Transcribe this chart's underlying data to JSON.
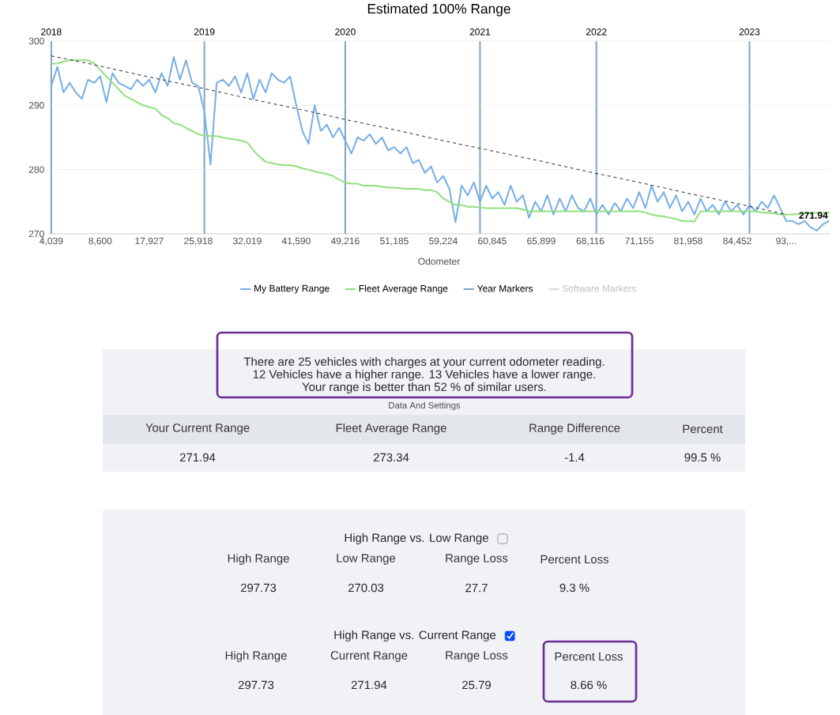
{
  "chart_data": [
    {
      "type": "line",
      "title": "Estimated 100% Range",
      "xlabel": "Odometer",
      "categories": [
        "4,039",
        null,
        null,
        null,
        null,
        null,
        null,
        null,
        "8,600",
        null,
        null,
        null,
        null,
        null,
        null,
        null,
        "17,927",
        null,
        null,
        null,
        null,
        null,
        null,
        null,
        "25,918",
        null,
        null,
        null,
        null,
        null,
        null,
        null,
        "32,019",
        null,
        null,
        null,
        null,
        null,
        null,
        null,
        "41,590",
        null,
        null,
        null,
        null,
        null,
        null,
        null,
        "49,216",
        null,
        null,
        null,
        null,
        null,
        null,
        null,
        "51,185",
        null,
        null,
        null,
        null,
        null,
        null,
        null,
        "59,224",
        null,
        null,
        null,
        null,
        null,
        null,
        null,
        "60,845",
        null,
        null,
        null,
        null,
        null,
        null,
        null,
        "65,899",
        null,
        null,
        null,
        null,
        null,
        null,
        null,
        "68,116",
        null,
        null,
        null,
        null,
        null,
        null,
        null,
        "71,155",
        null,
        null,
        null,
        null,
        null,
        null,
        null,
        "81,958",
        null,
        null,
        null,
        null,
        null,
        null,
        null,
        "84,452",
        null,
        null,
        null,
        null,
        null,
        null,
        null,
        "93,...",
        null,
        null,
        null,
        null,
        null,
        null,
        null
      ],
      "series": [
        {
          "name": "My Battery Range",
          "color": "#76aee6",
          "values": [
            293,
            296,
            292,
            293.5,
            292,
            291,
            294,
            293.5,
            294.5,
            290.5,
            295,
            293.5,
            293,
            292.5,
            294,
            293,
            294,
            292,
            295,
            293,
            297.5,
            294,
            297,
            293.5,
            293,
            289,
            280.8,
            293.5,
            294,
            293,
            294.5,
            292,
            295,
            291,
            294,
            292,
            295,
            294,
            293.5,
            294.5,
            290,
            286,
            284,
            290,
            286,
            287,
            285,
            286.5,
            284.5,
            282.5,
            285,
            284.5,
            285.5,
            284,
            285,
            283,
            283.5,
            282.5,
            283.5,
            281,
            281.5,
            279.5,
            280.5,
            278,
            279,
            277,
            271.8,
            277.5,
            276,
            278,
            275,
            277.5,
            275.5,
            276.5,
            274.5,
            277.5,
            275,
            276,
            272.5,
            275,
            273.5,
            276,
            273,
            275.5,
            273.5,
            276,
            274,
            273.5,
            275.5,
            273,
            274.5,
            273,
            274.8,
            273.5,
            275.5,
            274,
            276.5,
            274,
            277.5,
            275,
            276.5,
            274,
            276,
            273.5,
            275,
            273,
            275.5,
            273.5,
            274.5,
            273,
            275,
            273.5,
            274.5,
            273,
            274.5,
            273.5,
            275,
            274,
            276,
            274,
            272,
            272,
            271.5,
            272,
            271,
            270.5,
            271.5,
            272
          ]
        },
        {
          "name": "Fleet Average Range",
          "color": "#90e07d",
          "values": [
            296.5,
            296.5,
            296.8,
            297,
            297,
            297,
            297,
            296.5,
            295.5,
            294.5,
            293.5,
            292.5,
            291.5,
            291,
            290.5,
            290,
            289.7,
            289.5,
            288.5,
            288,
            287.2,
            287,
            286.5,
            286,
            285.5,
            285.3,
            285.2,
            285.2,
            285,
            284.8,
            284.7,
            284.5,
            284.2,
            283,
            282,
            281.2,
            281,
            280.8,
            280.7,
            280.7,
            280.5,
            280.2,
            280,
            279.7,
            279.5,
            279.3,
            279,
            278.4,
            278,
            277.8,
            277.8,
            277.5,
            277.5,
            277.5,
            277.3,
            277.2,
            277.2,
            277.1,
            277,
            277,
            277,
            276.8,
            276.8,
            276.5,
            275.5,
            275,
            274.5,
            274.5,
            274.2,
            274.2,
            274.1,
            274,
            274,
            274,
            274,
            274,
            274,
            273.8,
            273.5,
            273.5,
            273.5,
            273.5,
            273.5,
            273.5,
            273.5,
            273.5,
            273.5,
            273.5,
            273.5,
            273.5,
            273.5,
            273.5,
            273.5,
            273.5,
            273.5,
            273.5,
            273.5,
            273.3,
            273,
            272.8,
            272.7,
            272.5,
            272.3,
            272,
            272,
            271.9,
            273.5,
            273.5,
            273.5,
            273.5,
            273.5,
            273.5,
            273.5,
            273.5,
            273.5,
            273.5,
            273.3,
            273.3,
            273.2,
            273,
            273,
            273,
            273.1,
            273.2,
            273.2,
            273.3,
            273.3,
            273.3
          ]
        },
        {
          "type": "line",
          "color": "#333333",
          "line_style": "dashed",
          "x": [
            "4,039",
            "8,600",
            "17,927",
            "25,918",
            "32,019",
            "41,590",
            "49,216",
            "51,185",
            "59,224",
            "60,845",
            "65,899",
            "68,116",
            "71,155",
            "81,958",
            "84,452",
            "93,..."
          ],
          "values": [
            297.7,
            296.1,
            294.4,
            292.8,
            291.1,
            289.5,
            287.8,
            286.2,
            284.5,
            282.9,
            281.3,
            279.6,
            278.0,
            276.3,
            274.7,
            273.0
          ]
        },
        {
          "name": "Year Markers",
          "type": "bar",
          "color": "#7fa3c2",
          "values": [
            300,
            null,
            null,
            null,
            null,
            null,
            null,
            null,
            null,
            null,
            null,
            null,
            null,
            null,
            null,
            null,
            null,
            null,
            null,
            null,
            null,
            null,
            null,
            null,
            null,
            300,
            null,
            null,
            null,
            null,
            null,
            null,
            null,
            null,
            null,
            null,
            null,
            null,
            null,
            null,
            null,
            null,
            null,
            null,
            null,
            null,
            null,
            null,
            300,
            null,
            null,
            null,
            null,
            null,
            null,
            null,
            null,
            null,
            null,
            null,
            null,
            null,
            null,
            null,
            null,
            null,
            null,
            null,
            null,
            null,
            300,
            null,
            null,
            null,
            null,
            null,
            null,
            null,
            null,
            null,
            null,
            null,
            null,
            null,
            null,
            null,
            null,
            null,
            null,
            300,
            null,
            null,
            null,
            null,
            null,
            null,
            null,
            null,
            null,
            null,
            null,
            null,
            null,
            null,
            null,
            null,
            null,
            null,
            null,
            null,
            null,
            null,
            null,
            null,
            300,
            null,
            null,
            null,
            null,
            null,
            null,
            null,
            null,
            null,
            null,
            null,
            null,
            null
          ],
          "line_style": "solid"
        },
        {
          "name": "Software Markers",
          "color": "#d8d8d8",
          "values": [
            null,
            null,
            null,
            null,
            null,
            null,
            null,
            null,
            null,
            null,
            null,
            null,
            null,
            null,
            null,
            null,
            null,
            null,
            null,
            null,
            null,
            null,
            null,
            null,
            null,
            null,
            null,
            null,
            null,
            null,
            null,
            null,
            null,
            null,
            null,
            null,
            null,
            null,
            null,
            null,
            null,
            null,
            null,
            null,
            null,
            null,
            null,
            null,
            null,
            null,
            null,
            null,
            null,
            null,
            null,
            null,
            null,
            null,
            null,
            null,
            null,
            null,
            null,
            null,
            null,
            null,
            null,
            null,
            null,
            null,
            null,
            null,
            null,
            null,
            null,
            null,
            null,
            null,
            null,
            null,
            null,
            null,
            null,
            null,
            null,
            null,
            null,
            null,
            null,
            null,
            null,
            null,
            null,
            null,
            null,
            null,
            null,
            null,
            null,
            null,
            null,
            null,
            null,
            null,
            null,
            null,
            null,
            null,
            null,
            null,
            null,
            null,
            null,
            null,
            null,
            null,
            null,
            null,
            null,
            null,
            null,
            null,
            null,
            null,
            null,
            null,
            null,
            null
          ]
        }
      ],
      "ylim": [
        270,
        300
      ],
      "yticks": [
        270,
        280,
        290,
        300
      ],
      "annotations": [
        "2018",
        "2019",
        "2020",
        "2021",
        "2022",
        "2023",
        "271.94"
      ],
      "grid": "y",
      "legend": "bottom"
    },
    {
      "type": "other",
      "annotations": [
        "There are 25 vehicles with charges at your current odometer reading.",
        "12 Vehicles have a higher range. 13 Vehicles have a lower range.",
        "Your range is better than 52 % of similar users.",
        "Data And Settings"
      ],
      "categories": [
        "Your Current Range",
        "Fleet Average Range",
        "Range Difference",
        "Percent"
      ],
      "value_labels": [
        "271.94",
        "273.34",
        "-1.4",
        "99.5 %"
      ]
    },
    {
      "type": "other",
      "title": "High Range vs. Low Range",
      "categories": [
        "High Range",
        "Low Range",
        "Range Loss",
        "Percent Loss"
      ],
      "value_labels": [
        "297.73",
        "270.03",
        "27.7",
        "9.3 %"
      ]
    },
    {
      "type": "other",
      "title": "High Range vs. Current Range",
      "categories": [
        "High Range",
        "Current Range",
        "Range Loss",
        "Percent Loss"
      ],
      "value_labels": [
        "297.73",
        "271.94",
        "25.79",
        "8.66 %"
      ]
    }
  ]
}
